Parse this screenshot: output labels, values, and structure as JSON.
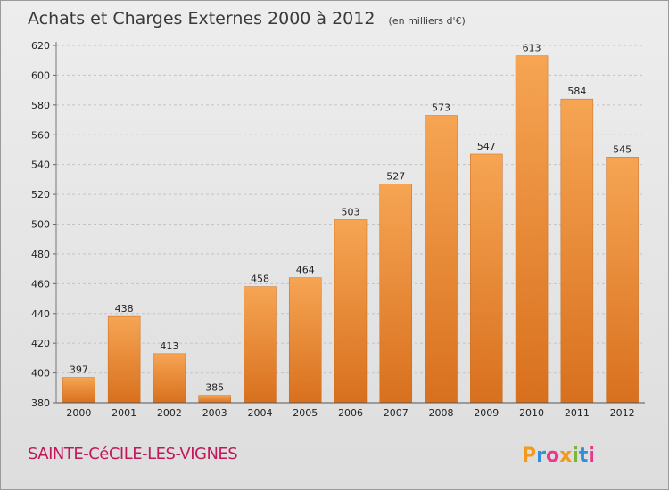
{
  "chart_data": {
    "type": "bar",
    "title": "Achats et Charges Externes 2000 à 2012",
    "subtitle": "(en milliers d'€)",
    "categories": [
      "2000",
      "2001",
      "2002",
      "2003",
      "2004",
      "2005",
      "2006",
      "2007",
      "2008",
      "2009",
      "2010",
      "2011",
      "2012"
    ],
    "values": [
      397,
      438,
      413,
      385,
      458,
      464,
      503,
      527,
      573,
      547,
      613,
      584,
      545
    ],
    "xlabel": "",
    "ylabel": "",
    "ylim": [
      380,
      620
    ],
    "yticks": [
      380,
      400,
      420,
      440,
      460,
      480,
      500,
      520,
      540,
      560,
      580,
      600,
      620
    ],
    "grid": true,
    "bar_color_top": "#f6a553",
    "bar_color_bottom": "#d8701e"
  },
  "commune": "SAINTE-CéCILE-LES-VIGNES",
  "brand": {
    "letters": [
      "P",
      "r",
      "o",
      "x",
      "i",
      "t",
      "i"
    ],
    "colors": [
      "#f29a1e",
      "#2f8fd8",
      "#e83a8c",
      "#f29a1e",
      "#79b833",
      "#2f8fd8",
      "#e83a8c"
    ]
  }
}
